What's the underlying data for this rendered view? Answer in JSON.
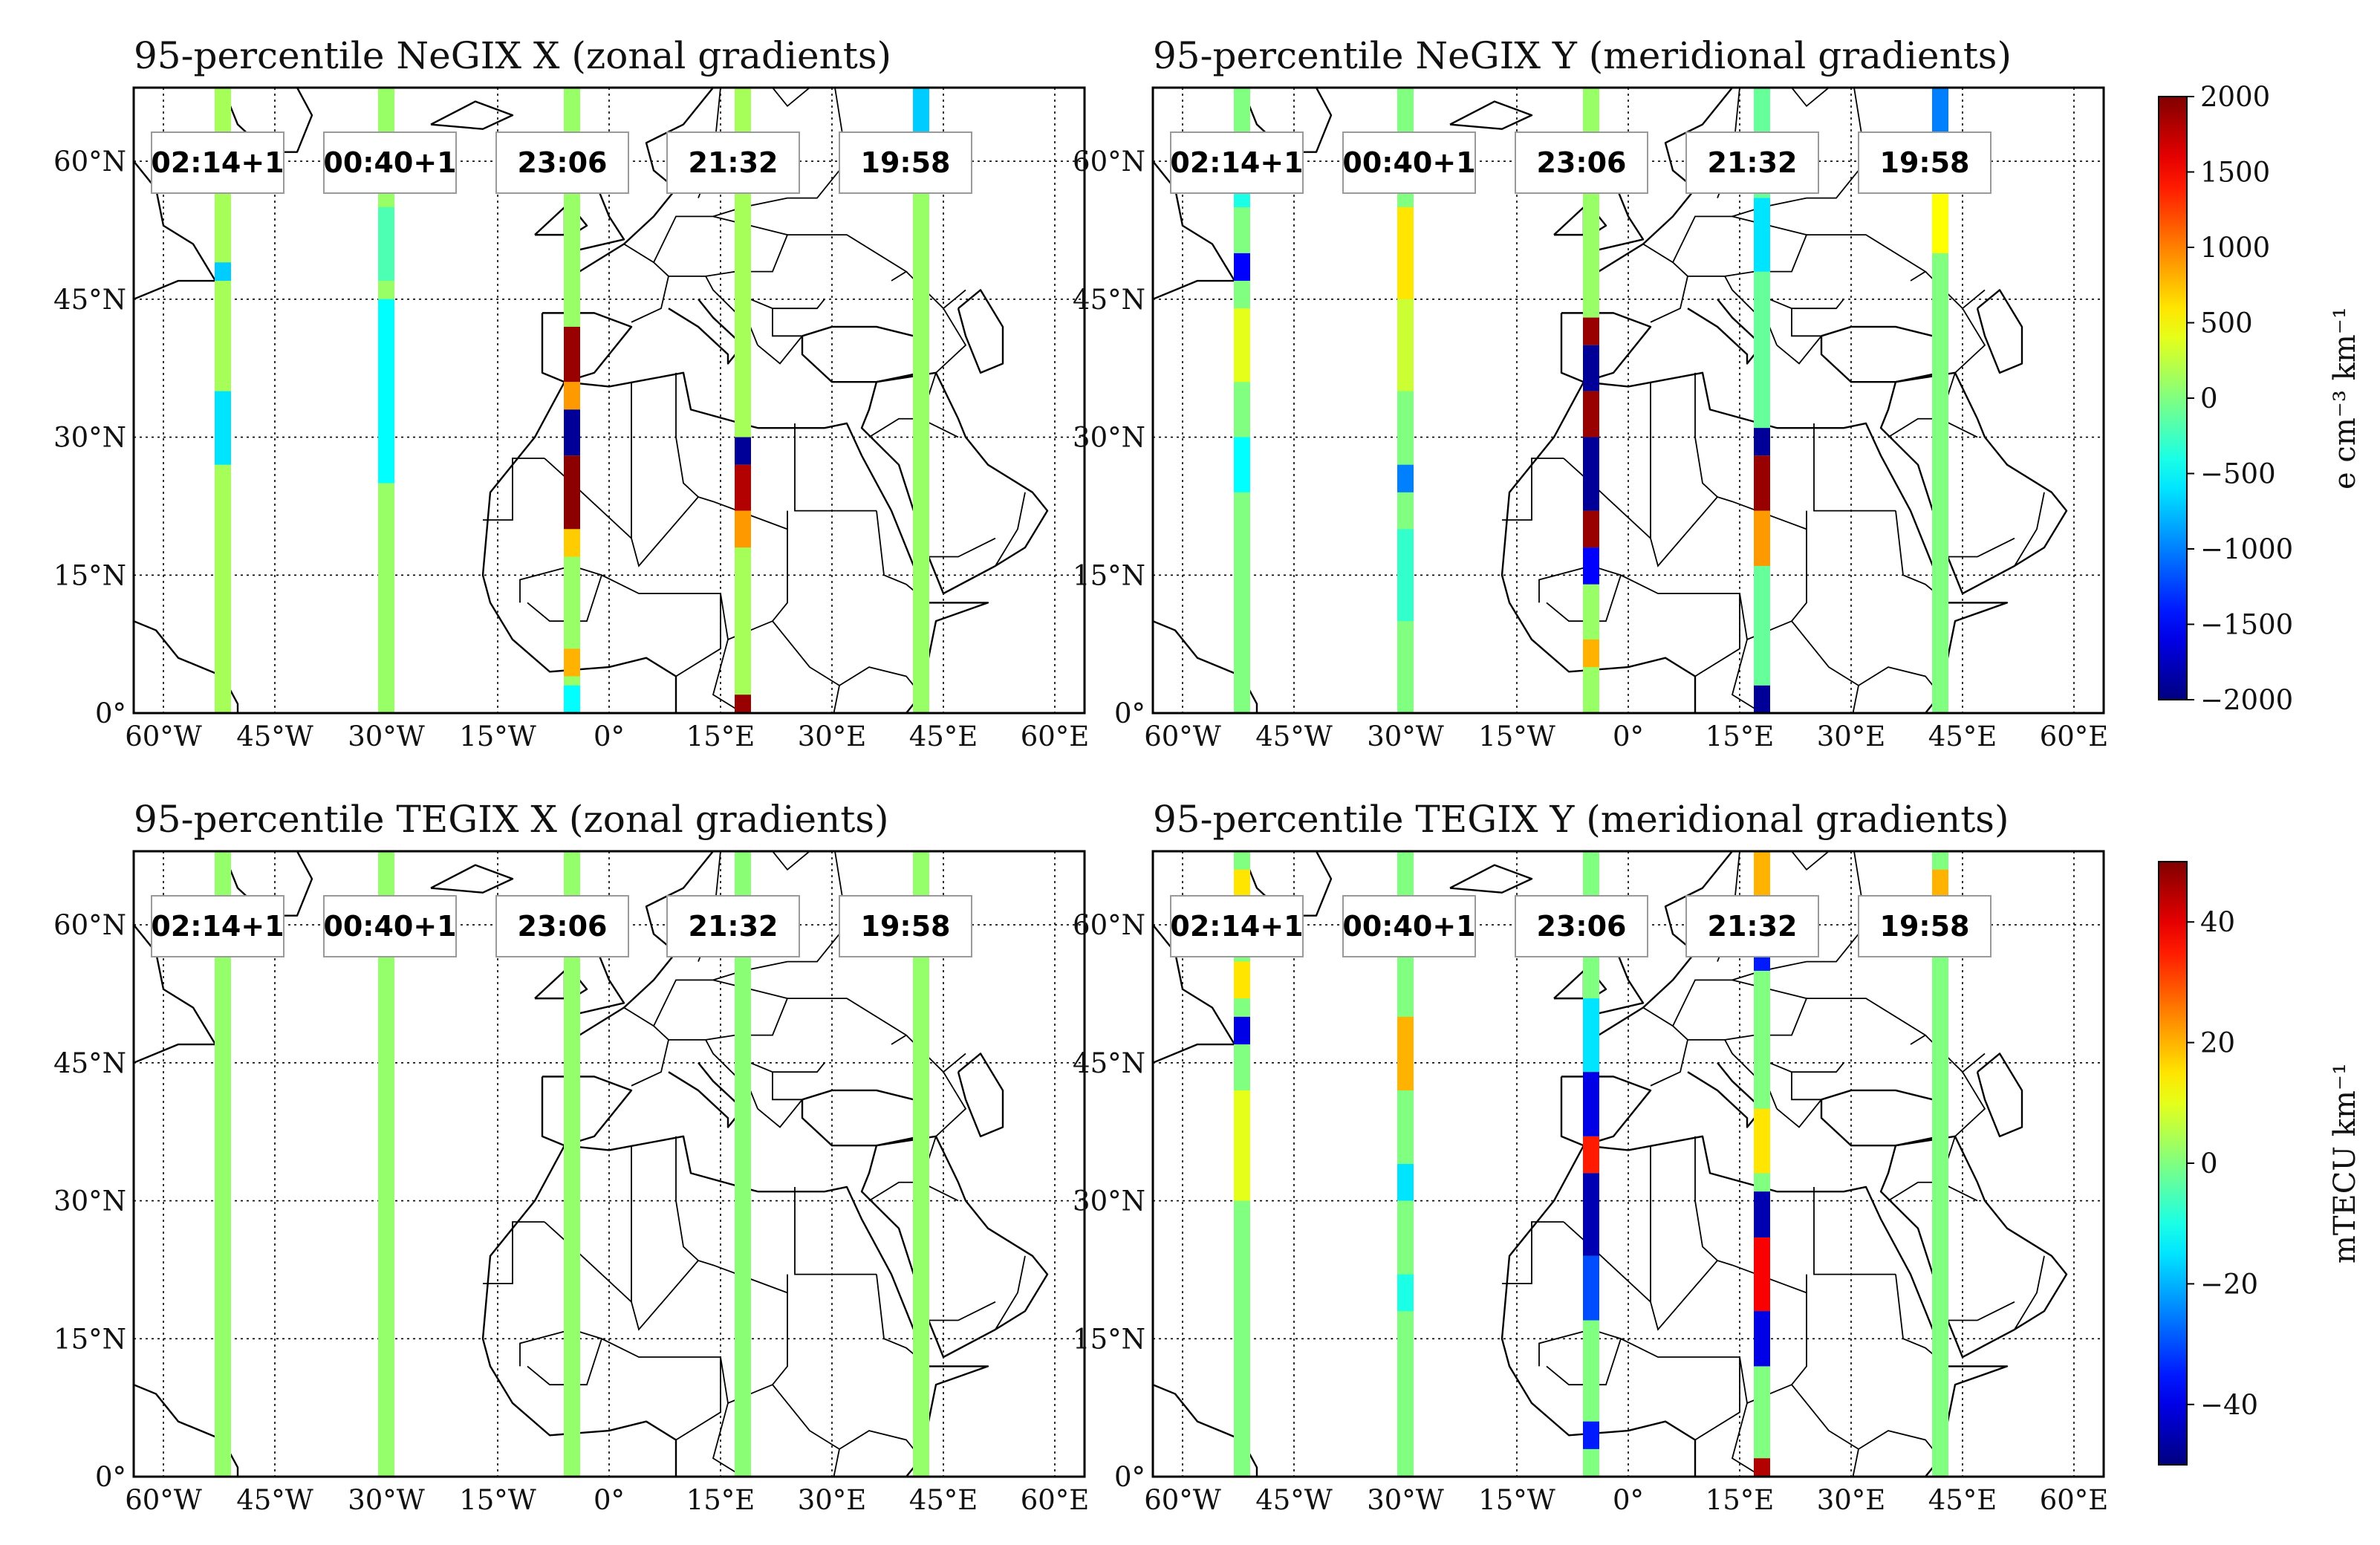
{
  "figure": {
    "panels": [
      {
        "id": "negix-x",
        "title": "95-percentile NeGIX X (zonal gradients)",
        "variable": "NeGIX X",
        "colorbar": "ne",
        "time_labels": [
          "02:14+1",
          "00:40+1",
          "23:06",
          "21:32",
          "19:58"
        ],
        "tracks": [
          {
            "lon": -52,
            "segments": [
              {
                "lat": [
                  0,
                  68
                ],
                "value": 150
              },
              {
                "lat": [
                  47,
                  49
                ],
                "value": -700
              },
              {
                "lat": [
                  27,
                  35
                ],
                "value": -600
              }
            ]
          },
          {
            "lon": -30,
            "segments": [
              {
                "lat": [
                  0,
                  68
                ],
                "value": 100
              },
              {
                "lat": [
                  25,
                  45
                ],
                "value": -500
              },
              {
                "lat": [
                  47,
                  55
                ],
                "value": -200
              }
            ]
          },
          {
            "lon": -5,
            "segments": [
              {
                "lat": [
                  0,
                  68
                ],
                "value": 100
              },
              {
                "lat": [
                  36,
                  42
                ],
                "value": 1900
              },
              {
                "lat": [
                  33,
                  36
                ],
                "value": 900
              },
              {
                "lat": [
                  28,
                  33
                ],
                "value": -1900
              },
              {
                "lat": [
                  20,
                  28
                ],
                "value": 1950
              },
              {
                "lat": [
                  17,
                  20
                ],
                "value": 700
              },
              {
                "lat": [
                  4,
                  7
                ],
                "value": 800
              },
              {
                "lat": [
                  0,
                  3
                ],
                "value": -500
              }
            ]
          },
          {
            "lon": 18,
            "segments": [
              {
                "lat": [
                  0,
                  68
                ],
                "value": 150
              },
              {
                "lat": [
                  27,
                  30
                ],
                "value": -1900
              },
              {
                "lat": [
                  22,
                  27
                ],
                "value": 1800
              },
              {
                "lat": [
                  18,
                  22
                ],
                "value": 900
              },
              {
                "lat": [
                  0,
                  2
                ],
                "value": 1900
              }
            ]
          },
          {
            "lon": 42,
            "segments": [
              {
                "lat": [
                  0,
                  68
                ],
                "value": 100
              },
              {
                "lat": [
                  63,
                  68
                ],
                "value": -700
              }
            ]
          }
        ]
      },
      {
        "id": "negix-y",
        "title": "95-percentile NeGIX Y (meridional gradients)",
        "variable": "NeGIX Y",
        "colorbar": "ne",
        "time_labels": [
          "02:14+1",
          "00:40+1",
          "23:06",
          "21:32",
          "19:58"
        ],
        "tracks": [
          {
            "lon": -52,
            "segments": [
              {
                "lat": [
                  0,
                  68
                ],
                "value": 0
              },
              {
                "lat": [
                  55,
                  60
                ],
                "value": -400
              },
              {
                "lat": [
                  47,
                  50
                ],
                "value": -1500
              },
              {
                "lat": [
                  36,
                  44
                ],
                "value": 400
              },
              {
                "lat": [
                  24,
                  30
                ],
                "value": -500
              }
            ]
          },
          {
            "lon": -30,
            "segments": [
              {
                "lat": [
                  0,
                  68
                ],
                "value": 0
              },
              {
                "lat": [
                  45,
                  55
                ],
                "value": 600
              },
              {
                "lat": [
                  35,
                  45
                ],
                "value": 300
              },
              {
                "lat": [
                  24,
                  27
                ],
                "value": -1000
              },
              {
                "lat": [
                  10,
                  20
                ],
                "value": -300
              }
            ]
          },
          {
            "lon": -5,
            "segments": [
              {
                "lat": [
                  0,
                  68
                ],
                "value": 100
              },
              {
                "lat": [
                  40,
                  43
                ],
                "value": 1900
              },
              {
                "lat": [
                  35,
                  40
                ],
                "value": -1900
              },
              {
                "lat": [
                  30,
                  35
                ],
                "value": 1900
              },
              {
                "lat": [
                  22,
                  30
                ],
                "value": -1900
              },
              {
                "lat": [
                  18,
                  22
                ],
                "value": 1900
              },
              {
                "lat": [
                  14,
                  18
                ],
                "value": -1500
              },
              {
                "lat": [
                  5,
                  8
                ],
                "value": 800
              }
            ]
          },
          {
            "lon": 18,
            "segments": [
              {
                "lat": [
                  0,
                  68
                ],
                "value": -100
              },
              {
                "lat": [
                  48,
                  56
                ],
                "value": -600
              },
              {
                "lat": [
                  28,
                  31
                ],
                "value": -1900
              },
              {
                "lat": [
                  22,
                  28
                ],
                "value": 1900
              },
              {
                "lat": [
                  16,
                  22
                ],
                "value": 900
              },
              {
                "lat": [
                  0,
                  3
                ],
                "value": -1900
              }
            ]
          },
          {
            "lon": 42,
            "segments": [
              {
                "lat": [
                  0,
                  68
                ],
                "value": 0
              },
              {
                "lat": [
                  50,
                  58
                ],
                "value": 500
              },
              {
                "lat": [
                  63,
                  68
                ],
                "value": -1000
              }
            ]
          }
        ]
      },
      {
        "id": "tegix-x",
        "title": "95-percentile TEGIX X (zonal gradients)",
        "variable": "TEGIX X",
        "colorbar": "te",
        "time_labels": [
          "02:14+1",
          "00:40+1",
          "23:06",
          "21:32",
          "19:58"
        ],
        "tracks": [
          {
            "lon": -52,
            "segments": [
              {
                "lat": [
                  0,
                  68
                ],
                "value": 2
              }
            ]
          },
          {
            "lon": -30,
            "segments": [
              {
                "lat": [
                  0,
                  68
                ],
                "value": 2
              }
            ]
          },
          {
            "lon": -5,
            "segments": [
              {
                "lat": [
                  0,
                  68
                ],
                "value": 2
              }
            ]
          },
          {
            "lon": 18,
            "segments": [
              {
                "lat": [
                  0,
                  68
                ],
                "value": 1
              }
            ]
          },
          {
            "lon": 42,
            "segments": [
              {
                "lat": [
                  0,
                  68
                ],
                "value": 2
              }
            ]
          }
        ]
      },
      {
        "id": "tegix-y",
        "title": "95-percentile TEGIX Y (meridional gradients)",
        "variable": "TEGIX Y",
        "colorbar": "te",
        "time_labels": [
          "02:14+1",
          "00:40+1",
          "23:06",
          "21:32",
          "19:58"
        ],
        "tracks": [
          {
            "lon": -52,
            "segments": [
              {
                "lat": [
                  0,
                  68
                ],
                "value": 0
              },
              {
                "lat": [
                  52,
                  56
                ],
                "value": 15
              },
              {
                "lat": [
                  47,
                  50
                ],
                "value": -40
              },
              {
                "lat": [
                  30,
                  42
                ],
                "value": 10
              },
              {
                "lat": [
                  62,
                  66
                ],
                "value": 15
              }
            ]
          },
          {
            "lon": -30,
            "segments": [
              {
                "lat": [
                  0,
                  68
                ],
                "value": 0
              },
              {
                "lat": [
                  42,
                  50
                ],
                "value": 20
              },
              {
                "lat": [
                  30,
                  34
                ],
                "value": -15
              },
              {
                "lat": [
                  18,
                  22
                ],
                "value": -10
              }
            ]
          },
          {
            "lon": -5,
            "segments": [
              {
                "lat": [
                  0,
                  68
                ],
                "value": 0
              },
              {
                "lat": [
                  44,
                  52
                ],
                "value": -15
              },
              {
                "lat": [
                  37,
                  44
                ],
                "value": -40
              },
              {
                "lat": [
                  33,
                  37
                ],
                "value": 35
              },
              {
                "lat": [
                  24,
                  33
                ],
                "value": -45
              },
              {
                "lat": [
                  17,
                  24
                ],
                "value": -30
              },
              {
                "lat": [
                  3,
                  6
                ],
                "value": -35
              }
            ]
          },
          {
            "lon": 18,
            "segments": [
              {
                "lat": [
                  0,
                  68
                ],
                "value": 0
              },
              {
                "lat": [
                  55,
                  60
                ],
                "value": -35
              },
              {
                "lat": [
                  33,
                  40
                ],
                "value": 15
              },
              {
                "lat": [
                  26,
                  31
                ],
                "value": -45
              },
              {
                "lat": [
                  18,
                  26
                ],
                "value": 38
              },
              {
                "lat": [
                  12,
                  18
                ],
                "value": -40
              },
              {
                "lat": [
                  0,
                  2
                ],
                "value": 45
              },
              {
                "lat": [
                  63,
                  68
                ],
                "value": 20
              }
            ]
          },
          {
            "lon": 42,
            "segments": [
              {
                "lat": [
                  0,
                  68
                ],
                "value": 0
              },
              {
                "lat": [
                  62,
                  66
                ],
                "value": 20
              }
            ]
          }
        ]
      }
    ],
    "map_extent": {
      "lon": [
        -64,
        64
      ],
      "lat": [
        0,
        68
      ]
    },
    "lon_ticks": [
      {
        "value": -60,
        "label": "60°W"
      },
      {
        "value": -45,
        "label": "45°W"
      },
      {
        "value": -30,
        "label": "30°W"
      },
      {
        "value": -15,
        "label": "15°W"
      },
      {
        "value": 0,
        "label": "0°"
      },
      {
        "value": 15,
        "label": "15°E"
      },
      {
        "value": 30,
        "label": "30°E"
      },
      {
        "value": 45,
        "label": "45°E"
      },
      {
        "value": 60,
        "label": "60°E"
      }
    ],
    "lat_ticks": [
      {
        "value": 0,
        "label": "0°"
      },
      {
        "value": 15,
        "label": "15°N"
      },
      {
        "value": 30,
        "label": "30°N"
      },
      {
        "value": 45,
        "label": "45°N"
      },
      {
        "value": 60,
        "label": "60°N"
      }
    ],
    "colorbars": {
      "ne": {
        "label": "e cm⁻³ km⁻¹",
        "range": [
          -2000,
          2000
        ],
        "ticks": [
          {
            "value": 2000,
            "label": "2000"
          },
          {
            "value": 1500,
            "label": "1500"
          },
          {
            "value": 1000,
            "label": "1000"
          },
          {
            "value": 500,
            "label": "500"
          },
          {
            "value": 0,
            "label": "0"
          },
          {
            "value": -500,
            "label": "−500"
          },
          {
            "value": -1000,
            "label": "−1000"
          },
          {
            "value": -1500,
            "label": "−1500"
          },
          {
            "value": -2000,
            "label": "−2000"
          }
        ]
      },
      "te": {
        "label": "mTECU km⁻¹",
        "range": [
          -50,
          50
        ],
        "ticks": [
          {
            "value": 40,
            "label": "40"
          },
          {
            "value": 20,
            "label": "20"
          },
          {
            "value": 0,
            "label": "0"
          },
          {
            "value": -20,
            "label": "−20"
          },
          {
            "value": -40,
            "label": "−40"
          }
        ]
      }
    },
    "colormap": "jet"
  }
}
